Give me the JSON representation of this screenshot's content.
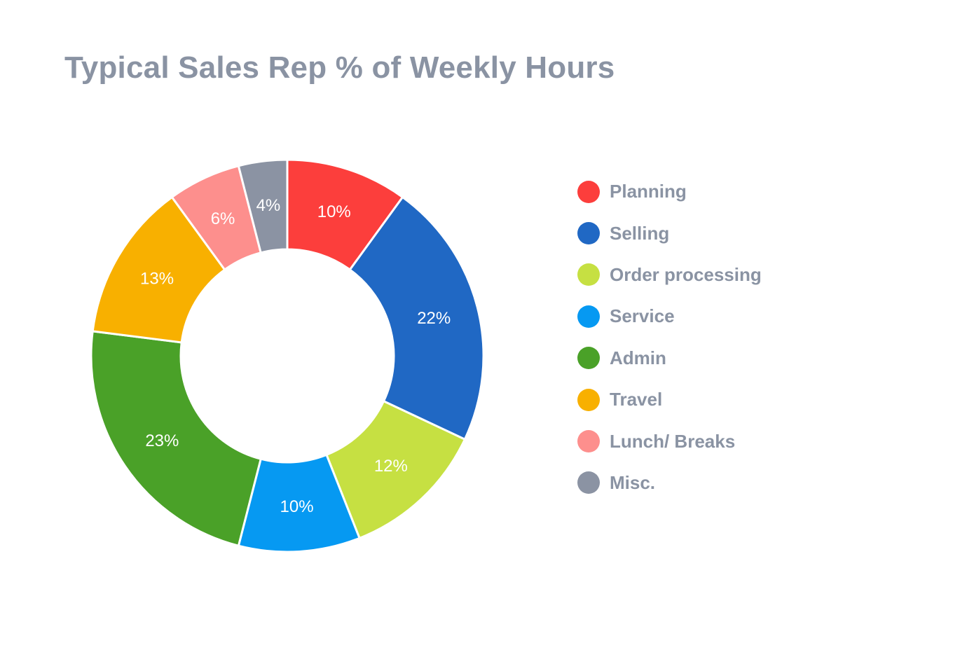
{
  "chart_data": {
    "type": "pie",
    "title": "Typical Sales Rep % of Weekly Hours",
    "categories": [
      "Planning",
      "Selling",
      "Order processing",
      "Service",
      "Admin",
      "Travel",
      "Lunch/ Breaks",
      "Misc."
    ],
    "values": [
      10,
      22,
      12,
      10,
      23,
      13,
      6,
      4
    ],
    "value_labels": [
      "10%",
      "22%",
      "12%",
      "10%",
      "23%",
      "13%",
      "6%",
      "4%"
    ],
    "colors": [
      "#fc3e3c",
      "#2068c4",
      "#c6e042",
      "#0699f2",
      "#4aa128",
      "#f8b000",
      "#fd8f8d",
      "#8b93a3"
    ],
    "donut": true,
    "legend_position": "right"
  }
}
